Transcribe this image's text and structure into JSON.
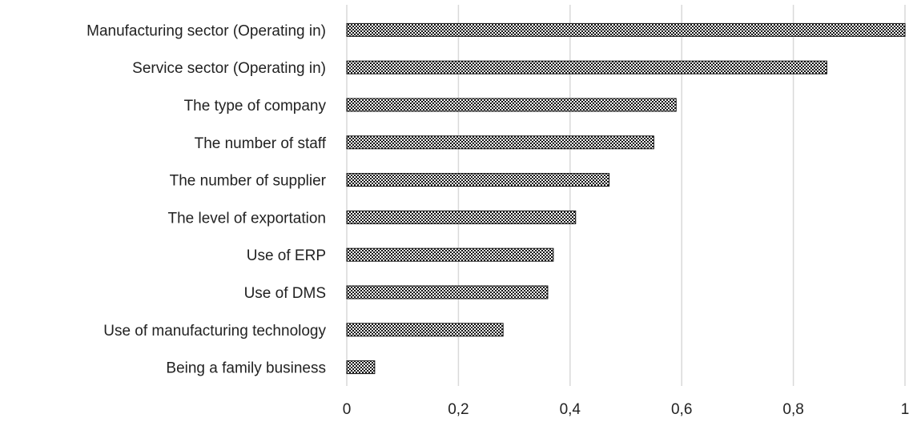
{
  "chart_data": {
    "type": "bar",
    "orientation": "horizontal",
    "categories": [
      "Manufacturing sector (Operating in)",
      "Service sector (Operating in)",
      "The type of company",
      "The number of staff",
      "The number of supplier",
      "The level of exportation",
      "Use of ERP",
      "Use of DMS",
      "Use of manufacturing technology",
      "Being a family business"
    ],
    "values": [
      1.0,
      0.86,
      0.59,
      0.55,
      0.47,
      0.41,
      0.37,
      0.36,
      0.28,
      0.05
    ],
    "xlim": [
      0,
      1
    ],
    "x_ticks": [
      0,
      0.2,
      0.4,
      0.6,
      0.8,
      1
    ],
    "x_tick_labels": [
      "0",
      "0,2",
      "0,4",
      "0,6",
      "0,8",
      "1"
    ],
    "grid": true,
    "bar_color": "#111111",
    "bar_pattern": "checkered",
    "grid_color": "#d9d9d9"
  }
}
